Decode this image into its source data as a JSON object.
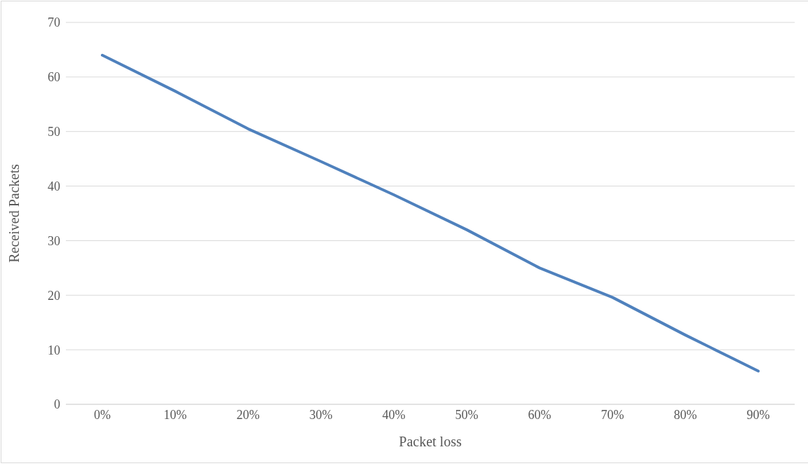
{
  "chart_data": {
    "type": "line",
    "xlabel": "Packet loss",
    "ylabel": "Received Packets",
    "categories": [
      "0%",
      "10%",
      "20%",
      "30%",
      "40%",
      "50%",
      "60%",
      "70%",
      "80%",
      "90%"
    ],
    "series": [
      {
        "color": "#4f81bd",
        "values": [
          64,
          57.4,
          50.5,
          44.5,
          38.4,
          32,
          25,
          19.6,
          12.7,
          6.1
        ]
      }
    ],
    "ylim": [
      0,
      70
    ],
    "yticks": [
      0,
      10,
      20,
      30,
      40,
      50,
      60,
      70
    ],
    "grid": "y",
    "legend": false,
    "marker": "none",
    "line_style": "solid"
  }
}
